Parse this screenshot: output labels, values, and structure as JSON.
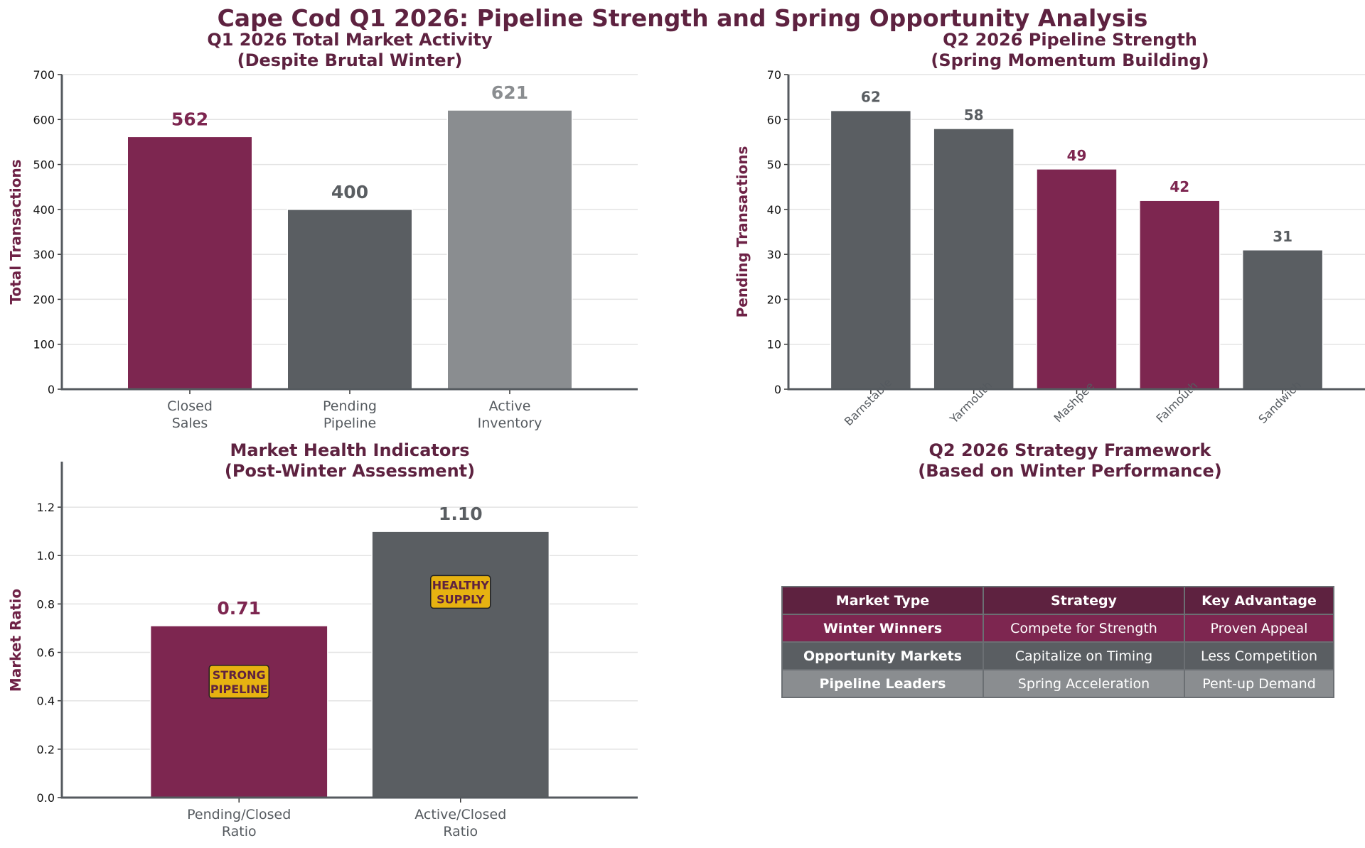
{
  "title": "Cape Cod Q1 2026: Pipeline Strength and Spring Opportunity Analysis",
  "colors": {
    "maroon": "#7d2650",
    "dark_gray": "#5a5e62",
    "light_gray": "#8a8d90",
    "title": "#5e2240",
    "badge": "#e6b211"
  },
  "chart_data": [
    {
      "type": "bar",
      "title": "Q1 2026 Total Market Activity\n(Despite Brutal Winter)",
      "title_lines": [
        "Q1 2026 Total Market Activity",
        "(Despite Brutal Winter)"
      ],
      "categories": [
        "Closed\nSales",
        "Pending\nPipeline",
        "Active\nInventory"
      ],
      "category_lines": [
        [
          "Closed",
          "Sales"
        ],
        [
          "Pending",
          "Pipeline"
        ],
        [
          "Active",
          "Inventory"
        ]
      ],
      "values": [
        562,
        400,
        621
      ],
      "value_labels": [
        "562",
        "400",
        "621"
      ],
      "bar_colors": [
        "#7d2650",
        "#5a5e62",
        "#8a8d90"
      ],
      "ylabel": "Total Transactions",
      "ylim": [
        0,
        700
      ],
      "yticks": [
        0,
        100,
        200,
        300,
        400,
        500,
        600,
        700
      ],
      "grid": true
    },
    {
      "type": "bar",
      "title": "Q2 2026 Pipeline Strength\n(Spring Momentum Building)",
      "title_lines": [
        "Q2 2026 Pipeline Strength",
        "(Spring Momentum Building)"
      ],
      "categories": [
        "Barnstable",
        "Yarmouth",
        "Mashpee",
        "Falmouth",
        "Sandwich"
      ],
      "values": [
        62,
        58,
        49,
        42,
        31
      ],
      "value_labels": [
        "62",
        "58",
        "49",
        "42",
        "31"
      ],
      "bar_colors": [
        "#5a5e62",
        "#5a5e62",
        "#7d2650",
        "#7d2650",
        "#5a5e62"
      ],
      "ylabel": "Pending Transactions",
      "ylim": [
        0,
        70
      ],
      "yticks": [
        0,
        10,
        20,
        30,
        40,
        50,
        60,
        70
      ],
      "grid": true
    },
    {
      "type": "bar",
      "title": "Market Health Indicators\n(Post-Winter Assessment)",
      "title_lines": [
        "Market Health Indicators",
        "(Post-Winter Assessment)"
      ],
      "categories": [
        "Pending/Closed\nRatio",
        "Active/Closed\nRatio"
      ],
      "category_lines": [
        [
          "Pending/Closed",
          "Ratio"
        ],
        [
          "Active/Closed",
          "Ratio"
        ]
      ],
      "values": [
        0.71,
        1.1
      ],
      "value_labels": [
        "0.71",
        "1.10"
      ],
      "bar_colors": [
        "#7d2650",
        "#5a5e62"
      ],
      "annotations": [
        [
          "STRONG",
          "PIPELINE"
        ],
        [
          "HEALTHY",
          "SUPPLY"
        ]
      ],
      "ylabel": "Market Ratio",
      "ylim": [
        0,
        1.3
      ],
      "yticks": [
        "0.0",
        "0.2",
        "0.4",
        "0.6",
        "0.8",
        "1.0",
        "1.2"
      ],
      "grid": true
    },
    {
      "type": "table",
      "title": "Q2 2026 Strategy Framework\n(Based on Winter Performance)",
      "title_lines": [
        "Q2 2026 Strategy Framework",
        "(Based on Winter Performance)"
      ],
      "columns": [
        "Market Type",
        "Strategy",
        "Key Advantage"
      ],
      "rows": [
        [
          "Winter Winners",
          "Compete for Strength",
          "Proven Appeal"
        ],
        [
          "Opportunity Markets",
          "Capitalize on Timing",
          "Less Competition"
        ],
        [
          "Pipeline Leaders",
          "Spring Acceleration",
          "Pent-up Demand"
        ]
      ]
    }
  ]
}
